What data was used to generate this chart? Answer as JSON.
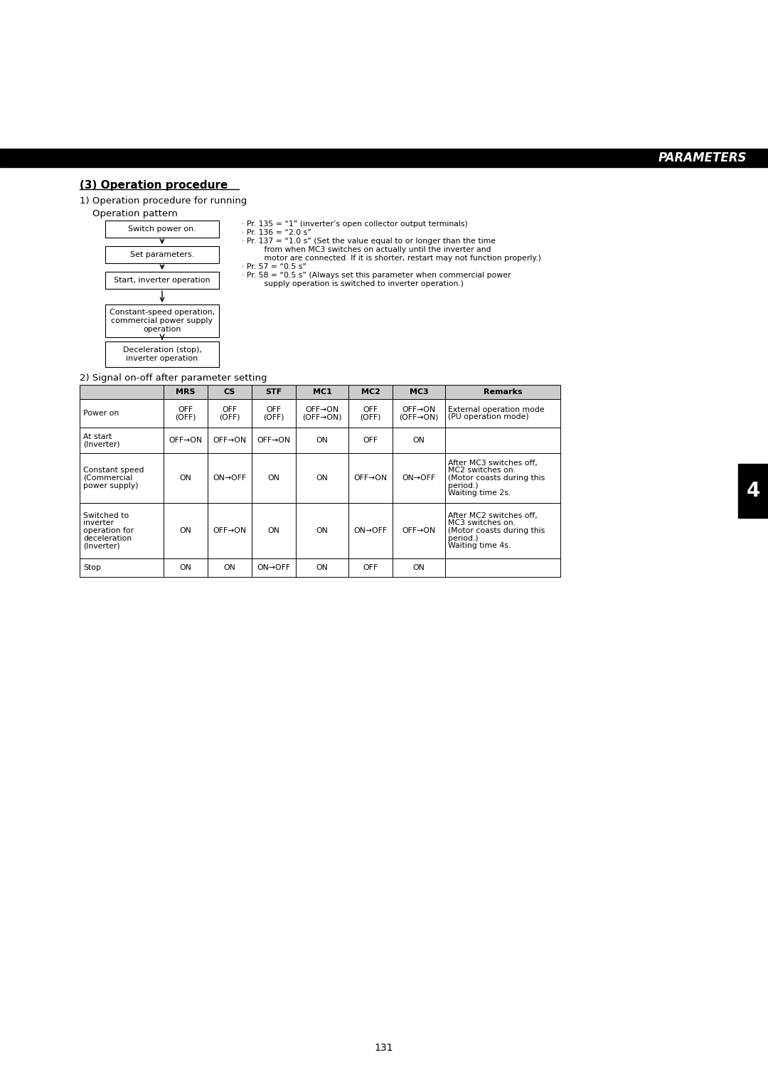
{
  "title_bar_text": "PARAMETERS",
  "section_title": "(3) Operation procedure",
  "subsection1": "1) Operation procedure for running",
  "subsection1b": "Operation pattern",
  "flowchart_boxes": [
    "Switch power on.",
    "Set parameters.",
    "Start, inverter operation",
    "Constant-speed operation,\ncommercial power supply\noperation",
    "Deceleration (stop),\ninverter operation"
  ],
  "notes": [
    "· Pr. 135 = “1” (inverter’s open collector output terminals)",
    "· Pr. 136 = “2.0 s”",
    "· Pr. 137 = “1.0 s” (Set the value equal to or longer than the time",
    "         from when MC3 switches on actually until the inverter and",
    "         motor are connected. If it is shorter, restart may not function properly.)",
    "· Pr. 57 = “0.5 s”",
    "· Pr. 58 = “0.5 s” (Always set this parameter when commercial power",
    "         supply operation is switched to inverter operation.)"
  ],
  "subsection2": "2) Signal on-off after parameter setting",
  "table_headers": [
    "",
    "MRS",
    "CS",
    "STF",
    "MC1",
    "MC2",
    "MC3",
    "Remarks"
  ],
  "table_rows": [
    [
      "Power on",
      "OFF\n(OFF)",
      "OFF\n(OFF)",
      "OFF\n(OFF)",
      "OFF→ON\n(OFF→ON)",
      "OFF\n(OFF)",
      "OFF→ON\n(OFF→ON)",
      "External operation mode\n(PU operation mode)"
    ],
    [
      "At start\n(Inverter)",
      "OFF→ON",
      "OFF→ON",
      "OFF→ON",
      "ON",
      "OFF",
      "ON",
      ""
    ],
    [
      "Constant speed\n(Commercial\npower supply)",
      "ON",
      "ON→OFF",
      "ON",
      "ON",
      "OFF→ON",
      "ON→OFF",
      "After MC3 switches off,\nMC2 switches on.\n(Motor coasts during this\nperiod.)\nWaiting time 2s."
    ],
    [
      "Switched to\ninverter\noperation for\ndeceleration\n(Inverter)",
      "ON",
      "OFF→ON",
      "ON",
      "ON",
      "ON→OFF",
      "OFF→ON",
      "After MC2 switches off,\nMC3 switches on.\n(Motor coasts during this\nperiod.)\nWaiting time 4s."
    ],
    [
      "Stop",
      "ON",
      "ON",
      "ON→OFF",
      "ON",
      "OFF",
      "ON",
      ""
    ]
  ],
  "page_number": "131",
  "tab_number": "4",
  "bg_color": "#ffffff",
  "header_bar_color": "#000000",
  "header_text_color": "#ffffff"
}
